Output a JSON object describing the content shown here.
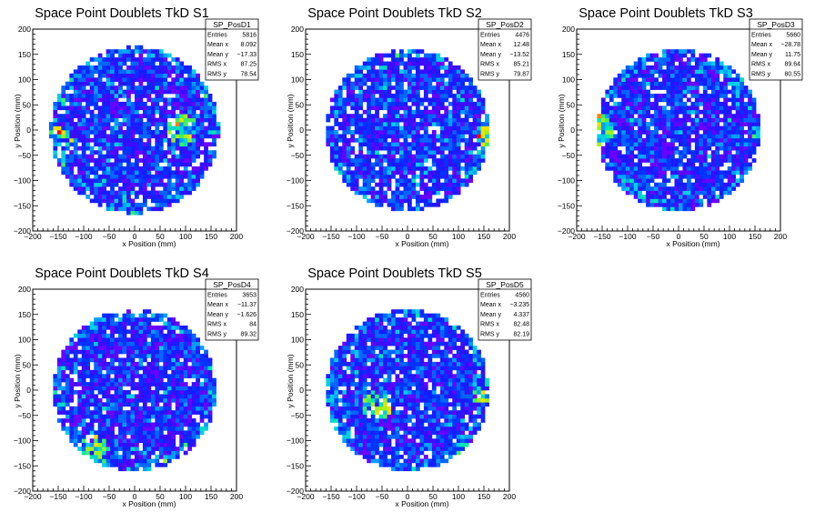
{
  "colors": {
    "palette": [
      "#6a00ff",
      "#3b0cff",
      "#1a1aff",
      "#0033ff",
      "#0066ff",
      "#00a0ff",
      "#00d0e0",
      "#00e5b0",
      "#40f060",
      "#a0f020",
      "#f0e000",
      "#ff8000",
      "#ff0000"
    ]
  },
  "chart_data": [
    {
      "type": "heatmap",
      "title": "Space Point Doublets TkD S1",
      "xlabel": "x Position (mm)",
      "ylabel": "y Position (mm)",
      "xlim": [
        -200,
        200
      ],
      "ylim": [
        -200,
        200
      ],
      "xticks": [
        "−200",
        "−150",
        "−100",
        "−50",
        "0",
        "50",
        "100",
        "150",
        "200"
      ],
      "yticks": [
        "−200",
        "−150",
        "−100",
        "−50",
        "0",
        "50",
        "100",
        "150",
        "200"
      ],
      "disk_radius": 165,
      "seed": 11,
      "hotspots": [
        {
          "x": 95,
          "y": 0,
          "strength": 0.9
        },
        {
          "x": -150,
          "y": -20,
          "strength": 0.6
        }
      ],
      "stats": {
        "name": "SP_PosD1",
        "rows": [
          [
            "Entries",
            "5816"
          ],
          [
            "Mean x",
            "8.092"
          ],
          [
            "Mean y",
            "−17.33"
          ],
          [
            "RMS x",
            "87.25"
          ],
          [
            "RMS y",
            "78.54"
          ]
        ]
      }
    },
    {
      "type": "heatmap",
      "title": "Space Point Doublets TkD S2",
      "xlabel": "x Position (mm)",
      "ylabel": "y Position (mm)",
      "xlim": [
        -200,
        200
      ],
      "ylim": [
        -200,
        200
      ],
      "xticks": [
        "−200",
        "−150",
        "−100",
        "−50",
        "0",
        "50",
        "100",
        "150",
        "200"
      ],
      "yticks": [
        "−200",
        "−150",
        "−100",
        "−50",
        "0",
        "50",
        "100",
        "150",
        "200"
      ],
      "disk_radius": 160,
      "seed": 23,
      "hotspots": [
        {
          "x": 155,
          "y": -20,
          "strength": 0.6
        }
      ],
      "stats": {
        "name": "SP_PosD2",
        "rows": [
          [
            "Entries",
            "4476"
          ],
          [
            "Mean x",
            "12.48"
          ],
          [
            "Mean y",
            "−13.52"
          ],
          [
            "RMS x",
            "85.21"
          ],
          [
            "RMS y",
            "79.87"
          ]
        ]
      }
    },
    {
      "type": "heatmap",
      "title": "Space Point Doublets TkD S3",
      "xlabel": "x Position (mm)",
      "ylabel": "y Position (mm)",
      "xlim": [
        -200,
        200
      ],
      "ylim": [
        -200,
        200
      ],
      "xticks": [
        "−200",
        "−150",
        "−100",
        "−50",
        "0",
        "50",
        "100",
        "150",
        "200"
      ],
      "yticks": [
        "−200",
        "−150",
        "−100",
        "−50",
        "0",
        "50",
        "100",
        "150",
        "200"
      ],
      "disk_radius": 160,
      "seed": 37,
      "hotspots": [
        {
          "x": -155,
          "y": 0,
          "strength": 0.9
        }
      ],
      "stats": {
        "name": "SP_PosD3",
        "rows": [
          [
            "Entries",
            "5660"
          ],
          [
            "Mean x",
            "−28.78"
          ],
          [
            "Mean y",
            "11.75"
          ],
          [
            "RMS x",
            "89.64"
          ],
          [
            "RMS y",
            "80.55"
          ]
        ]
      }
    },
    {
      "type": "heatmap",
      "title": "Space Point Doublets TkD S4",
      "xlabel": "x Position (mm)",
      "ylabel": "y Position (mm)",
      "xlim": [
        -200,
        200
      ],
      "ylim": [
        -200,
        200
      ],
      "xticks": [
        "−200",
        "−150",
        "−100",
        "−50",
        "0",
        "50",
        "100",
        "150",
        "200"
      ],
      "yticks": [
        "−200",
        "−150",
        "−100",
        "−50",
        "0",
        "50",
        "100",
        "150",
        "200"
      ],
      "disk_radius": 160,
      "seed": 53,
      "hotspots": [
        {
          "x": -80,
          "y": -120,
          "strength": 0.7
        }
      ],
      "stats": {
        "name": "SP_PosD4",
        "rows": [
          [
            "Entries",
            "3653"
          ],
          [
            "Mean x",
            "−11.37"
          ],
          [
            "Mean y",
            "−1.626"
          ],
          [
            "RMS x",
            "84"
          ],
          [
            "RMS y",
            "89.32"
          ]
        ]
      }
    },
    {
      "type": "heatmap",
      "title": "Space Point Doublets TkD S5",
      "xlabel": "x Position (mm)",
      "ylabel": "y Position (mm)",
      "xlim": [
        -200,
        200
      ],
      "ylim": [
        -200,
        200
      ],
      "xticks": [
        "−200",
        "−150",
        "−100",
        "−50",
        "0",
        "50",
        "100",
        "150",
        "200"
      ],
      "yticks": [
        "−200",
        "−150",
        "−100",
        "−50",
        "0",
        "50",
        "100",
        "150",
        "200"
      ],
      "disk_radius": 160,
      "seed": 71,
      "hotspots": [
        {
          "x": -60,
          "y": -30,
          "strength": 0.9
        },
        {
          "x": 150,
          "y": 0,
          "strength": 0.6
        }
      ],
      "stats": {
        "name": "SP_PosD5",
        "rows": [
          [
            "Entries",
            "4560"
          ],
          [
            "Mean x",
            "−3.235"
          ],
          [
            "Mean y",
            "4.337"
          ],
          [
            "RMS x",
            "82.48"
          ],
          [
            "RMS y",
            "82.19"
          ]
        ]
      }
    }
  ]
}
